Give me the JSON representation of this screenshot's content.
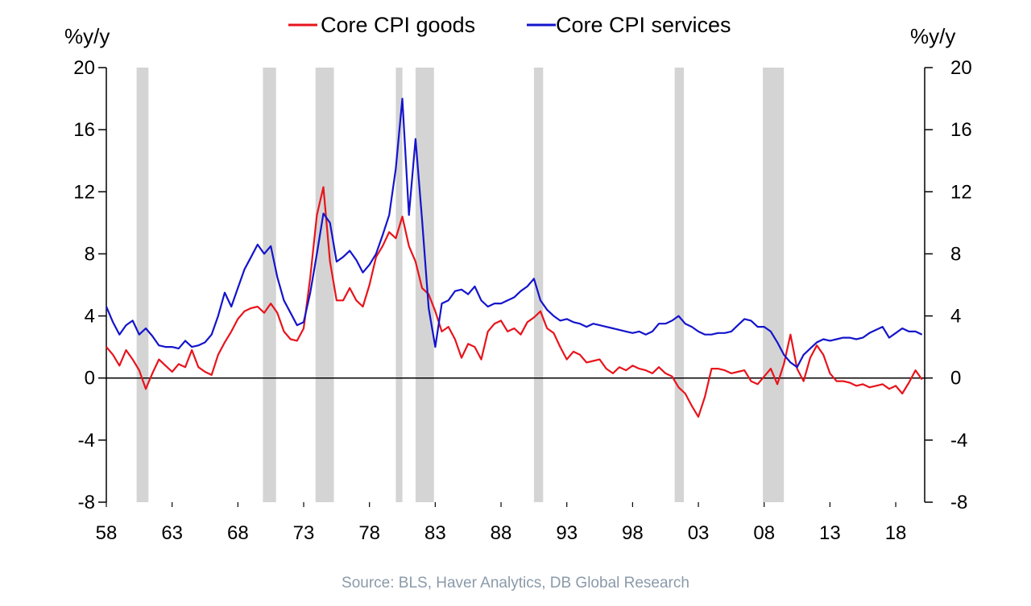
{
  "chart_data": {
    "type": "line",
    "y_unit_left": "%y/y",
    "y_unit_right": "%y/y",
    "ylim": [
      -8,
      20
    ],
    "y_ticks": [
      20,
      16,
      12,
      8,
      4,
      0,
      -4,
      -8
    ],
    "xlim": [
      1958,
      2020.2
    ],
    "x_ticks": [
      1958,
      1963,
      1968,
      1973,
      1978,
      1983,
      1988,
      1993,
      1998,
      2003,
      2008,
      2013,
      2018
    ],
    "x_tick_labels": [
      "58",
      "63",
      "68",
      "73",
      "78",
      "83",
      "88",
      "93",
      "98",
      "03",
      "08",
      "13",
      "18"
    ],
    "recessions": [
      [
        1960.3,
        1961.2
      ],
      [
        1969.9,
        1970.9
      ],
      [
        1973.9,
        1975.3
      ],
      [
        1980.0,
        1980.5
      ],
      [
        1981.5,
        1982.9
      ],
      [
        1990.5,
        1991.2
      ],
      [
        2001.2,
        2001.9
      ],
      [
        2007.9,
        2009.5
      ]
    ],
    "legend_position": "top-center",
    "source": "Source: BLS, Haver Analytics, DB Global Research",
    "series": [
      {
        "name": "Core CPI goods",
        "color": "#e8141c",
        "x": [
          1958.0,
          1958.5,
          1959.0,
          1959.5,
          1960.0,
          1960.5,
          1961.0,
          1961.5,
          1962.0,
          1962.5,
          1963.0,
          1963.5,
          1964.0,
          1964.5,
          1965.0,
          1965.5,
          1966.0,
          1966.5,
          1967.0,
          1967.5,
          1968.0,
          1968.5,
          1969.0,
          1969.5,
          1970.0,
          1970.5,
          1971.0,
          1971.5,
          1972.0,
          1972.5,
          1973.0,
          1973.5,
          1974.0,
          1974.5,
          1975.0,
          1975.5,
          1976.0,
          1976.5,
          1977.0,
          1977.5,
          1978.0,
          1978.5,
          1979.0,
          1979.5,
          1980.0,
          1980.5,
          1981.0,
          1981.5,
          1982.0,
          1982.5,
          1983.0,
          1983.5,
          1984.0,
          1984.5,
          1985.0,
          1985.5,
          1986.0,
          1986.5,
          1987.0,
          1987.5,
          1988.0,
          1988.5,
          1989.0,
          1989.5,
          1990.0,
          1990.5,
          1991.0,
          1991.5,
          1992.0,
          1992.5,
          1993.0,
          1993.5,
          1994.0,
          1994.5,
          1995.0,
          1995.5,
          1996.0,
          1996.5,
          1997.0,
          1997.5,
          1998.0,
          1998.5,
          1999.0,
          1999.5,
          2000.0,
          2000.5,
          2001.0,
          2001.5,
          2002.0,
          2002.5,
          2003.0,
          2003.5,
          2004.0,
          2004.5,
          2005.0,
          2005.5,
          2006.0,
          2006.5,
          2007.0,
          2007.5,
          2008.0,
          2008.5,
          2009.0,
          2009.5,
          2010.0,
          2010.5,
          2011.0,
          2011.5,
          2012.0,
          2012.5,
          2013.0,
          2013.5,
          2014.0,
          2014.5,
          2015.0,
          2015.5,
          2016.0,
          2016.5,
          2017.0,
          2017.5,
          2018.0,
          2018.5,
          2019.0,
          2019.5,
          2020.0
        ],
        "values": [
          2.0,
          1.5,
          0.8,
          1.8,
          1.2,
          0.5,
          -0.7,
          0.3,
          1.2,
          0.8,
          0.4,
          0.9,
          0.7,
          1.8,
          0.7,
          0.4,
          0.2,
          1.5,
          2.3,
          3.0,
          3.8,
          4.3,
          4.5,
          4.6,
          4.2,
          4.8,
          4.2,
          3.0,
          2.5,
          2.4,
          3.2,
          6.5,
          10.5,
          12.3,
          7.5,
          5.0,
          5.0,
          5.8,
          5.0,
          4.6,
          6.0,
          7.8,
          8.5,
          9.4,
          9.0,
          10.4,
          8.5,
          7.5,
          5.8,
          5.4,
          4.3,
          3.0,
          3.3,
          2.5,
          1.3,
          2.2,
          2.0,
          1.2,
          3.0,
          3.5,
          3.7,
          3.0,
          3.2,
          2.8,
          3.6,
          3.9,
          4.3,
          3.2,
          2.9,
          2.0,
          1.2,
          1.7,
          1.5,
          1.0,
          1.1,
          1.2,
          0.6,
          0.3,
          0.7,
          0.5,
          0.8,
          0.6,
          0.5,
          0.3,
          0.7,
          0.3,
          0.1,
          -0.6,
          -1.0,
          -1.8,
          -2.5,
          -1.2,
          0.6,
          0.6,
          0.5,
          0.3,
          0.4,
          0.5,
          -0.2,
          -0.4,
          0.1,
          0.6,
          -0.4,
          0.9,
          2.8,
          0.6,
          -0.2,
          1.3,
          2.1,
          1.5,
          0.3,
          -0.2,
          -0.2,
          -0.3,
          -0.5,
          -0.4,
          -0.6,
          -0.5,
          -0.4,
          -0.7,
          -0.5,
          -1.0,
          -0.3,
          0.5,
          -0.1
        ]
      },
      {
        "name": "Core CPI services",
        "color": "#1414cc",
        "x": [
          1958.0,
          1958.5,
          1959.0,
          1959.5,
          1960.0,
          1960.5,
          1961.0,
          1961.5,
          1962.0,
          1962.5,
          1963.0,
          1963.5,
          1964.0,
          1964.5,
          1965.0,
          1965.5,
          1966.0,
          1966.5,
          1967.0,
          1967.5,
          1968.0,
          1968.5,
          1969.0,
          1969.5,
          1970.0,
          1970.5,
          1971.0,
          1971.5,
          1972.0,
          1972.5,
          1973.0,
          1973.5,
          1974.0,
          1974.5,
          1975.0,
          1975.5,
          1976.0,
          1976.5,
          1977.0,
          1977.5,
          1978.0,
          1978.5,
          1979.0,
          1979.5,
          1980.0,
          1980.5,
          1981.0,
          1981.5,
          1982.0,
          1982.5,
          1983.0,
          1983.5,
          1984.0,
          1984.5,
          1985.0,
          1985.5,
          1986.0,
          1986.5,
          1987.0,
          1987.5,
          1988.0,
          1988.5,
          1989.0,
          1989.5,
          1990.0,
          1990.5,
          1991.0,
          1991.5,
          1992.0,
          1992.5,
          1993.0,
          1993.5,
          1994.0,
          1994.5,
          1995.0,
          1995.5,
          1996.0,
          1996.5,
          1997.0,
          1997.5,
          1998.0,
          1998.5,
          1999.0,
          1999.5,
          2000.0,
          2000.5,
          2001.0,
          2001.5,
          2002.0,
          2002.5,
          2003.0,
          2003.5,
          2004.0,
          2004.5,
          2005.0,
          2005.5,
          2006.0,
          2006.5,
          2007.0,
          2007.5,
          2008.0,
          2008.5,
          2009.0,
          2009.5,
          2010.0,
          2010.5,
          2011.0,
          2011.5,
          2012.0,
          2012.5,
          2013.0,
          2013.5,
          2014.0,
          2014.5,
          2015.0,
          2015.5,
          2016.0,
          2016.5,
          2017.0,
          2017.5,
          2018.0,
          2018.5,
          2019.0,
          2019.5,
          2020.0
        ],
        "values": [
          4.6,
          3.6,
          2.8,
          3.4,
          3.7,
          2.8,
          3.2,
          2.7,
          2.1,
          2.0,
          2.0,
          1.9,
          2.4,
          2.0,
          2.1,
          2.3,
          2.8,
          4.0,
          5.5,
          4.6,
          5.8,
          7.0,
          7.8,
          8.6,
          8.0,
          8.5,
          6.5,
          5.0,
          4.2,
          3.4,
          3.6,
          5.5,
          8.0,
          10.6,
          10.0,
          7.5,
          7.8,
          8.2,
          7.6,
          6.8,
          7.3,
          8.0,
          9.2,
          10.5,
          13.5,
          18.0,
          10.5,
          15.4,
          10.2,
          4.5,
          2.0,
          4.8,
          5.0,
          5.6,
          5.7,
          5.4,
          5.9,
          5.0,
          4.6,
          4.8,
          4.8,
          5.0,
          5.2,
          5.6,
          5.9,
          6.4,
          5.0,
          4.4,
          4.0,
          3.7,
          3.8,
          3.6,
          3.5,
          3.3,
          3.5,
          3.4,
          3.3,
          3.2,
          3.1,
          3.0,
          2.9,
          3.0,
          2.8,
          3.0,
          3.5,
          3.5,
          3.7,
          4.0,
          3.5,
          3.3,
          3.0,
          2.8,
          2.8,
          2.9,
          2.9,
          3.0,
          3.4,
          3.8,
          3.7,
          3.3,
          3.3,
          3.0,
          2.3,
          1.5,
          1.0,
          0.7,
          1.5,
          1.9,
          2.3,
          2.5,
          2.4,
          2.5,
          2.6,
          2.6,
          2.5,
          2.6,
          2.9,
          3.1,
          3.3,
          2.6,
          2.9,
          3.2,
          3.0,
          3.0,
          2.8
        ]
      }
    ]
  }
}
